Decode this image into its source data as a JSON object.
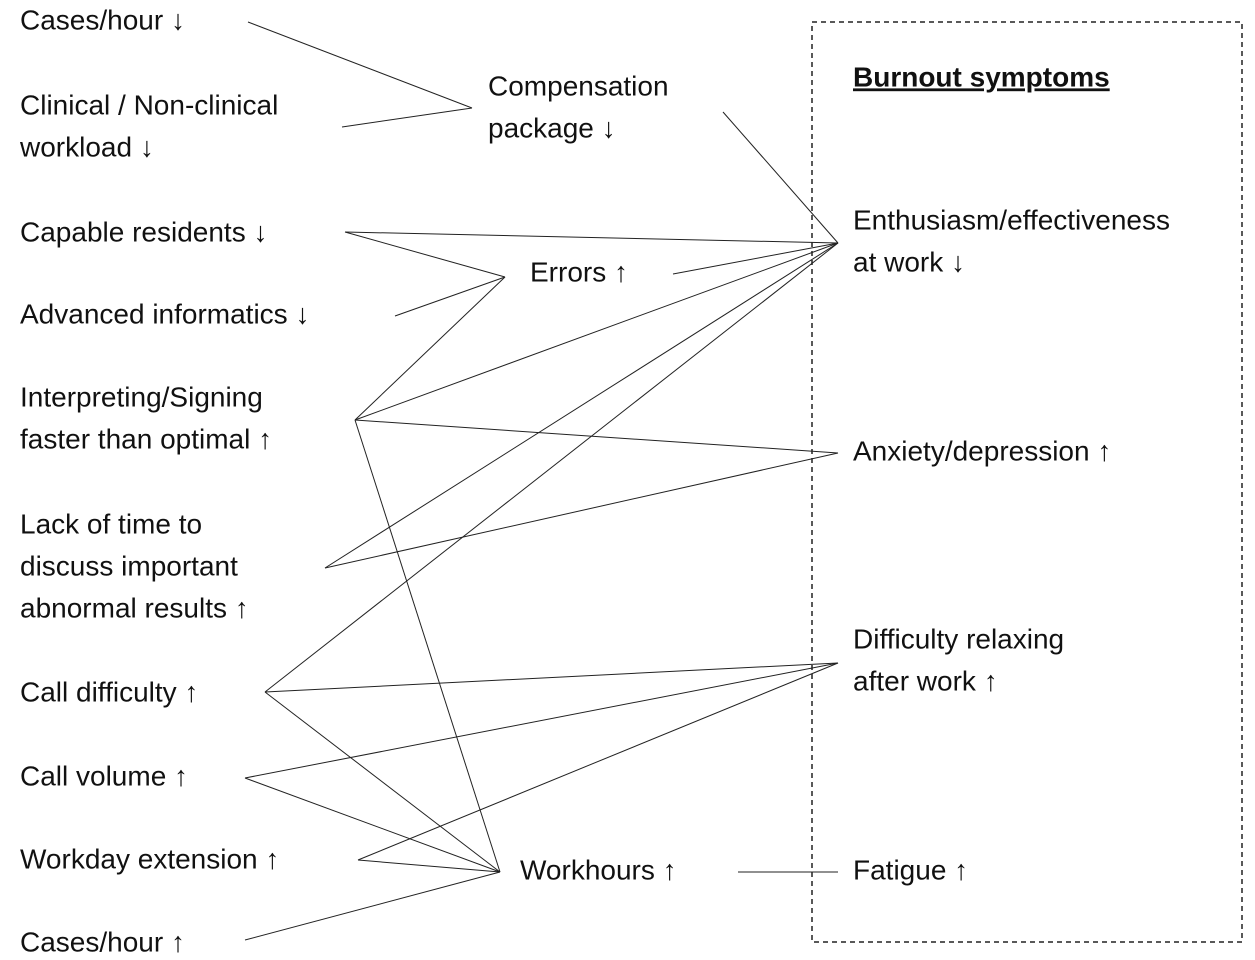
{
  "title": "Burnout symptoms",
  "causes": [
    {
      "lines": [
        "Cases/hour ↓"
      ]
    },
    {
      "lines": [
        "Clinical / Non-clinical",
        "workload ↓"
      ]
    },
    {
      "lines": [
        "Capable residents ↓"
      ]
    },
    {
      "lines": [
        "Advanced informatics ↓"
      ]
    },
    {
      "lines": [
        "Interpreting/Signing",
        "faster than optimal ↑"
      ]
    },
    {
      "lines": [
        "Lack of time to",
        "discuss important",
        "abnormal results ↑"
      ]
    },
    {
      "lines": [
        "Call difficulty ↑"
      ]
    },
    {
      "lines": [
        "Call volume ↑"
      ]
    },
    {
      "lines": [
        "Workday extension ↑"
      ]
    },
    {
      "lines": [
        "Cases/hour ↑"
      ]
    }
  ],
  "mediators": [
    {
      "lines": [
        "Compensation",
        "package ↓"
      ]
    },
    {
      "lines": [
        "Errors ↑"
      ]
    },
    {
      "lines": [
        "Workhours ↑"
      ]
    }
  ],
  "symptoms": [
    {
      "lines": [
        "Enthusiasm/effectiveness",
        "at work ↓"
      ]
    },
    {
      "lines": [
        "Anxiety/depression ↑"
      ]
    },
    {
      "lines": [
        "Difficulty relaxing",
        "after work ↑"
      ]
    },
    {
      "lines": [
        "Fatigue ↑"
      ]
    }
  ]
}
